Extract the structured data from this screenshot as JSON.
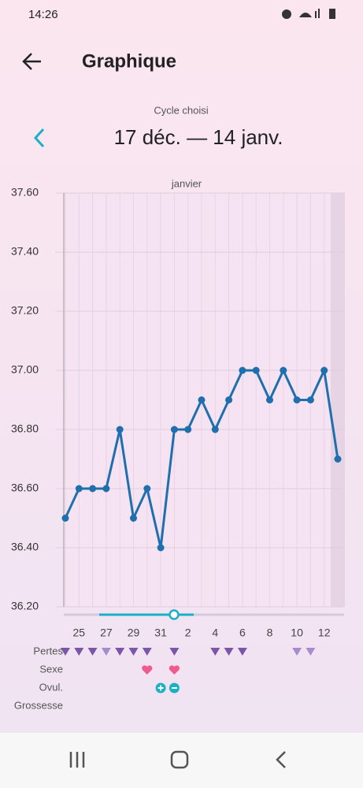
{
  "status_bar": {
    "time": "14:26"
  },
  "header": {
    "title": "Graphique"
  },
  "cycle": {
    "label": "Cycle choisi",
    "range": "17 déc. — 14 janv."
  },
  "chart_data": {
    "type": "line",
    "annotation": "janvier",
    "categories": [
      null,
      "25",
      null,
      "27",
      null,
      "29",
      null,
      "31",
      null,
      "2",
      null,
      "4",
      null,
      "6",
      null,
      "8",
      null,
      "10",
      null,
      "12",
      null
    ],
    "series": [
      {
        "color": "#1f6fae",
        "values": [
          36.5,
          36.6,
          36.6,
          36.6,
          36.8,
          36.5,
          36.6,
          36.4,
          36.8,
          36.8,
          36.9,
          36.8,
          36.9,
          37.0,
          37.0,
          36.9,
          37.0,
          36.9,
          36.9,
          37.0,
          36.7
        ]
      }
    ],
    "ylim": [
      36.2,
      37.6
    ],
    "yticks": [
      {
        "value": 36.2,
        "label": "36.20"
      },
      {
        "value": 36.4,
        "label": "36.40"
      },
      {
        "value": 36.6,
        "label": "36.60"
      },
      {
        "value": 36.8,
        "label": "36.80"
      },
      {
        "value": 37.0,
        "label": "37.00"
      },
      {
        "value": 37.2,
        "label": "37.20"
      },
      {
        "value": 37.4,
        "label": "37.40"
      },
      {
        "value": 37.6,
        "label": "37.60"
      }
    ],
    "grid": true
  },
  "rows": [
    "Pertes",
    "Sexe",
    "Ovul.",
    "Grossesse"
  ]
}
